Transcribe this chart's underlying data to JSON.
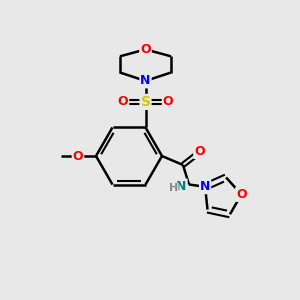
{
  "background_color": "#e8e8e8",
  "bond_color": "#000000",
  "O_color": "#ff0000",
  "N_color": "#0000ff",
  "S_color": "#cccc00",
  "N_amide_color": "#008080",
  "H_color": "#888888",
  "figsize": [
    3.0,
    3.0
  ],
  "dpi": 100,
  "xlim": [
    0,
    10
  ],
  "ylim": [
    0,
    10
  ]
}
